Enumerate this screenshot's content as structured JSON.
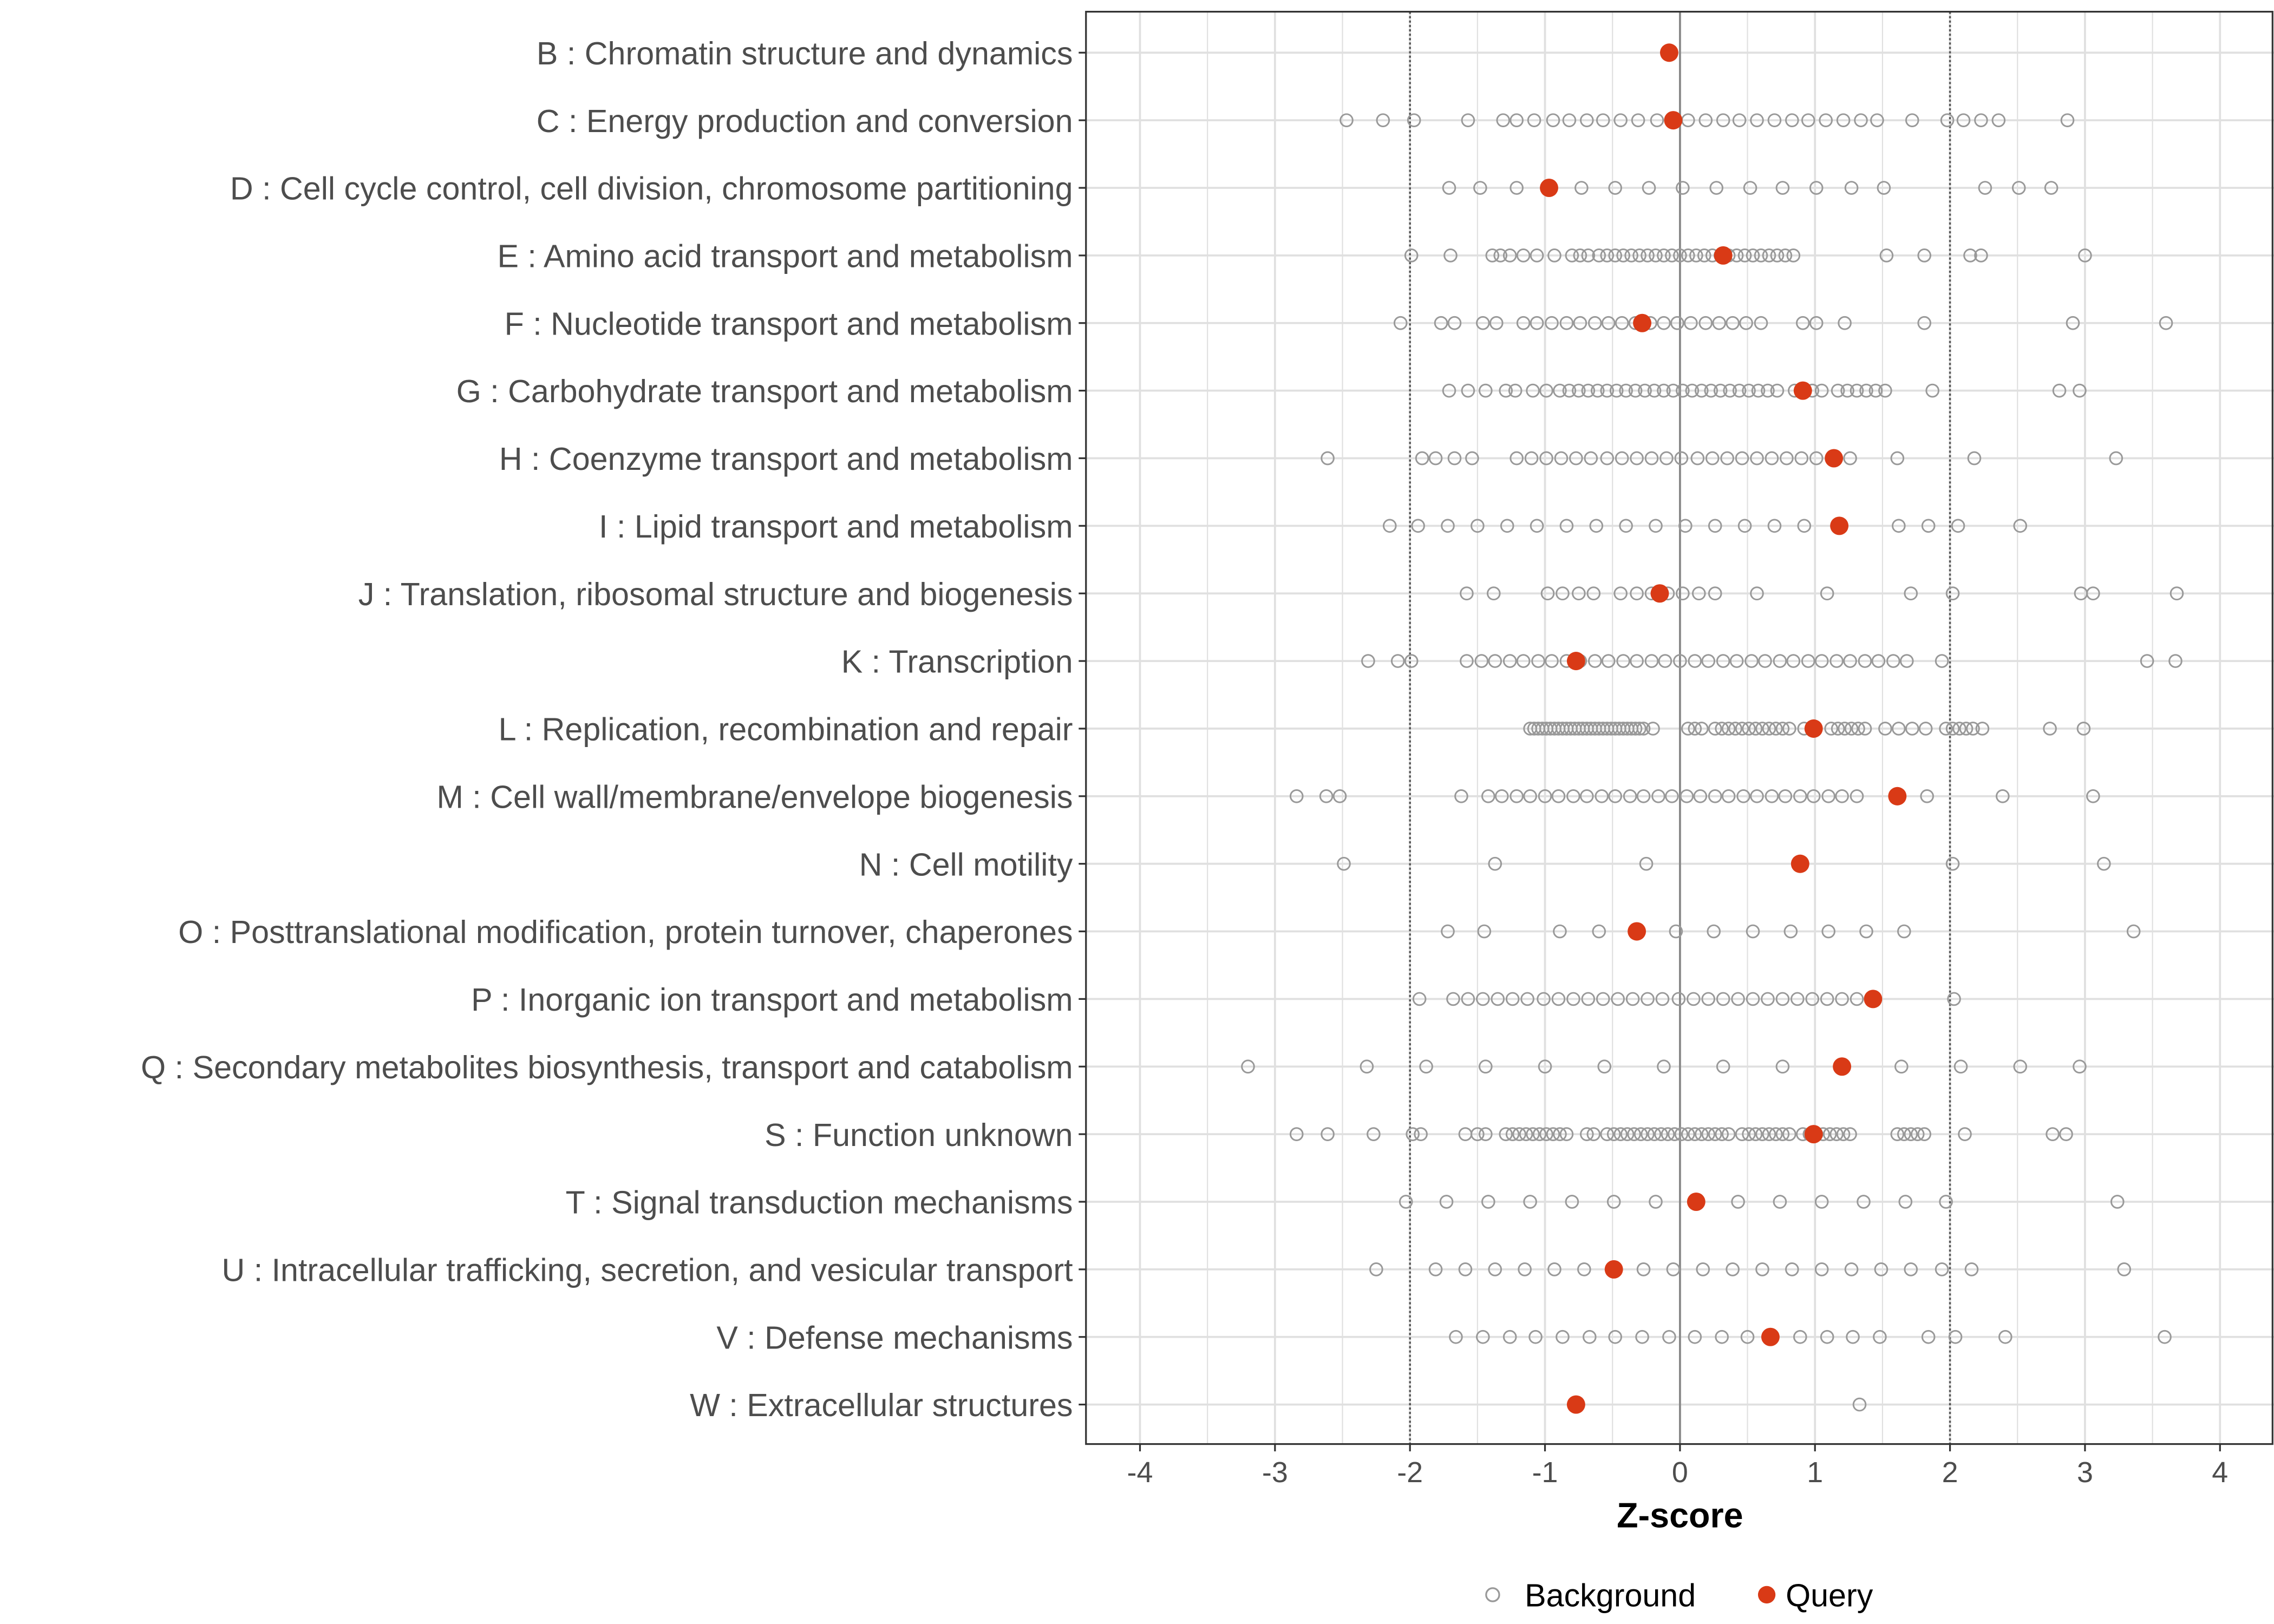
{
  "chart_data": {
    "type": "scatter",
    "xlabel": "Z-score",
    "xlim": [
      -4.4,
      4.4
    ],
    "x_ticks": [
      -4,
      -3,
      -2,
      -1,
      0,
      1,
      2,
      3,
      4
    ],
    "x_tick_labels": [
      "-4",
      "-3",
      "-2",
      "-1",
      "0",
      "1",
      "2",
      "3",
      "4"
    ],
    "reference_lines": [
      {
        "x": -2,
        "style": "dotted"
      },
      {
        "x": 0,
        "style": "solid"
      },
      {
        "x": 2,
        "style": "dotted"
      }
    ],
    "grid": true,
    "legend": {
      "placement": "bottom",
      "entries": [
        {
          "label": "Background",
          "shape": "open-circle",
          "color": "#999999"
        },
        {
          "label": "Query",
          "shape": "filled-circle",
          "color": "#d93a16"
        }
      ]
    },
    "categories": [
      "B : Chromatin structure and dynamics",
      "C : Energy production and conversion",
      "D : Cell cycle control, cell division, chromosome partitioning",
      "E : Amino acid transport and metabolism",
      "F : Nucleotide transport and metabolism",
      "G : Carbohydrate transport and metabolism",
      "H : Coenzyme transport and metabolism",
      "I : Lipid transport and metabolism",
      "J : Translation, ribosomal structure and biogenesis",
      "K : Transcription",
      "L : Replication, recombination and repair",
      "M : Cell wall/membrane/envelope biogenesis",
      "N : Cell motility",
      "O : Posttranslational modification, protein turnover, chaperones",
      "P : Inorganic ion transport and metabolism",
      "Q : Secondary metabolites biosynthesis, transport and catabolism",
      "S : Function unknown",
      "T : Signal transduction mechanisms",
      "U : Intracellular trafficking, secretion, and vesicular transport",
      "V : Defense mechanisms",
      "W : Extracellular structures"
    ],
    "series": [
      {
        "name": "Query",
        "values": [
          -0.08,
          -0.05,
          -0.97,
          0.32,
          -0.28,
          0.91,
          1.14,
          1.18,
          -0.15,
          -0.77,
          0.99,
          1.61,
          0.89,
          -0.32,
          1.43,
          1.2,
          0.99,
          0.12,
          -0.49,
          0.67,
          -0.77
        ]
      },
      {
        "name": "Background",
        "values": [
          [],
          [
            -2.47,
            -2.2,
            -1.97,
            -1.57,
            -1.31,
            -1.21,
            -1.08,
            -0.94,
            -0.82,
            -0.69,
            -0.57,
            -0.44,
            -0.31,
            -0.17,
            -0.05,
            0.06,
            0.19,
            0.32,
            0.44,
            0.57,
            0.7,
            0.83,
            0.95,
            1.08,
            1.21,
            1.34,
            1.46,
            1.72,
            1.98,
            2.1,
            2.23,
            2.36,
            2.87
          ],
          [
            -1.71,
            -1.48,
            -1.21,
            -0.97,
            -0.73,
            -0.48,
            -0.23,
            0.02,
            0.27,
            0.52,
            0.76,
            1.01,
            1.27,
            1.51,
            2.26,
            2.51,
            2.75
          ],
          [
            -1.99,
            -1.7,
            -1.39,
            -1.33,
            -1.26,
            -1.16,
            -1.06,
            -0.93,
            -0.8,
            -0.74,
            -0.68,
            -0.6,
            -0.54,
            -0.48,
            -0.42,
            -0.36,
            -0.3,
            -0.24,
            -0.18,
            -0.12,
            -0.06,
            0.0,
            0.06,
            0.12,
            0.18,
            0.24,
            0.3,
            0.36,
            0.42,
            0.48,
            0.54,
            0.6,
            0.66,
            0.72,
            0.78,
            0.84,
            1.53,
            1.81,
            2.15,
            2.23,
            3.0
          ],
          [
            -2.07,
            -1.77,
            -1.67,
            -1.46,
            -1.36,
            -1.16,
            -1.06,
            -0.95,
            -0.84,
            -0.74,
            -0.63,
            -0.53,
            -0.43,
            -0.33,
            -0.22,
            -0.12,
            -0.02,
            0.08,
            0.19,
            0.29,
            0.39,
            0.49,
            0.6,
            0.91,
            1.01,
            1.22,
            1.81,
            2.91,
            3.6
          ],
          [
            -1.71,
            -1.57,
            -1.44,
            -1.29,
            -1.22,
            -1.09,
            -0.99,
            -0.89,
            -0.82,
            -0.75,
            -0.68,
            -0.61,
            -0.54,
            -0.47,
            -0.4,
            -0.33,
            -0.26,
            -0.19,
            -0.12,
            -0.05,
            0.02,
            0.09,
            0.16,
            0.23,
            0.3,
            0.37,
            0.44,
            0.51,
            0.58,
            0.65,
            0.72,
            0.85,
            0.98,
            1.05,
            1.17,
            1.24,
            1.31,
            1.38,
            1.45,
            1.52,
            1.87,
            2.81,
            2.96
          ],
          [
            -2.61,
            -1.91,
            -1.81,
            -1.67,
            -1.54,
            -1.21,
            -1.1,
            -0.99,
            -0.88,
            -0.77,
            -0.66,
            -0.54,
            -0.43,
            -0.32,
            -0.21,
            -0.1,
            0.01,
            0.13,
            0.24,
            0.35,
            0.46,
            0.57,
            0.68,
            0.79,
            0.9,
            1.01,
            1.26,
            1.61,
            2.18,
            3.23
          ],
          [
            -2.15,
            -1.94,
            -1.72,
            -1.5,
            -1.28,
            -1.06,
            -0.84,
            -0.62,
            -0.4,
            -0.18,
            0.04,
            0.26,
            0.48,
            0.7,
            0.92,
            1.62,
            1.84,
            2.06,
            2.52
          ],
          [
            -1.58,
            -1.38,
            -0.98,
            -0.87,
            -0.75,
            -0.64,
            -0.44,
            -0.32,
            -0.21,
            -0.09,
            0.02,
            0.14,
            0.26,
            0.57,
            1.09,
            1.71,
            2.02,
            2.97,
            3.06,
            3.68
          ],
          [
            -2.31,
            -2.09,
            -1.99,
            -1.58,
            -1.47,
            -1.37,
            -1.26,
            -1.16,
            -1.05,
            -0.95,
            -0.84,
            -0.74,
            -0.63,
            -0.53,
            -0.42,
            -0.32,
            -0.21,
            -0.11,
            0.0,
            0.11,
            0.21,
            0.32,
            0.42,
            0.53,
            0.63,
            0.74,
            0.84,
            0.95,
            1.05,
            1.16,
            1.26,
            1.37,
            1.47,
            1.58,
            1.68,
            1.94,
            3.46,
            3.67
          ],
          [
            -1.11,
            -1.08,
            -1.05,
            -1.02,
            -0.99,
            -0.96,
            -0.93,
            -0.9,
            -0.87,
            -0.84,
            -0.81,
            -0.78,
            -0.75,
            -0.72,
            -0.69,
            -0.66,
            -0.63,
            -0.6,
            -0.57,
            -0.54,
            -0.51,
            -0.48,
            -0.45,
            -0.42,
            -0.39,
            -0.36,
            -0.33,
            -0.3,
            -0.27,
            -0.2,
            0.06,
            0.11,
            0.16,
            0.26,
            0.31,
            0.36,
            0.41,
            0.46,
            0.51,
            0.56,
            0.61,
            0.66,
            0.71,
            0.76,
            0.81,
            0.92,
            1.12,
            1.17,
            1.22,
            1.27,
            1.32,
            1.37,
            1.52,
            1.62,
            1.72,
            1.82,
            1.97,
            2.02,
            2.07,
            2.12,
            2.17,
            2.24,
            2.74,
            2.99
          ],
          [
            -2.84,
            -2.62,
            -2.52,
            -1.62,
            -1.42,
            -1.32,
            -1.21,
            -1.11,
            -1.0,
            -0.9,
            -0.79,
            -0.69,
            -0.58,
            -0.48,
            -0.37,
            -0.27,
            -0.16,
            -0.06,
            0.05,
            0.15,
            0.26,
            0.36,
            0.47,
            0.57,
            0.68,
            0.78,
            0.89,
            0.99,
            1.1,
            1.2,
            1.31,
            1.83,
            2.39,
            3.06
          ],
          [
            -2.49,
            -1.37,
            -0.25,
            2.02,
            3.14
          ],
          [
            -1.72,
            -1.45,
            -0.89,
            -0.6,
            -0.03,
            0.25,
            0.54,
            0.82,
            1.1,
            1.38,
            1.66,
            3.36
          ],
          [
            -1.93,
            -1.68,
            -1.57,
            -1.46,
            -1.35,
            -1.24,
            -1.13,
            -1.01,
            -0.9,
            -0.79,
            -0.68,
            -0.57,
            -0.46,
            -0.35,
            -0.24,
            -0.13,
            -0.01,
            0.1,
            0.21,
            0.32,
            0.43,
            0.54,
            0.65,
            0.76,
            0.87,
            0.98,
            1.09,
            1.2,
            1.31,
            2.03
          ],
          [
            -3.2,
            -2.32,
            -1.88,
            -1.44,
            -1.0,
            -0.56,
            -0.12,
            0.32,
            0.76,
            1.64,
            2.08,
            2.52,
            2.96
          ],
          [
            -2.84,
            -2.61,
            -2.27,
            -1.98,
            -1.92,
            -1.59,
            -1.5,
            -1.44,
            -1.29,
            -1.24,
            -1.19,
            -1.14,
            -1.09,
            -1.04,
            -0.99,
            -0.94,
            -0.89,
            -0.84,
            -0.69,
            -0.64,
            -0.54,
            -0.49,
            -0.44,
            -0.39,
            -0.34,
            -0.29,
            -0.24,
            -0.19,
            -0.14,
            -0.09,
            -0.04,
            0.01,
            0.06,
            0.11,
            0.16,
            0.21,
            0.26,
            0.31,
            0.36,
            0.46,
            0.51,
            0.56,
            0.61,
            0.66,
            0.71,
            0.76,
            0.81,
            0.91,
            0.96,
            1.01,
            1.06,
            1.11,
            1.16,
            1.21,
            1.26,
            1.61,
            1.66,
            1.71,
            1.76,
            1.81,
            2.11,
            2.76,
            2.86
          ],
          [
            -2.03,
            -1.73,
            -1.42,
            -1.11,
            -0.8,
            -0.49,
            -0.18,
            0.43,
            0.74,
            1.05,
            1.36,
            1.67,
            1.97,
            3.24
          ],
          [
            -2.25,
            -1.81,
            -1.59,
            -1.37,
            -1.15,
            -0.93,
            -0.71,
            -0.27,
            -0.05,
            0.17,
            0.39,
            0.61,
            0.83,
            1.05,
            1.27,
            1.49,
            1.71,
            1.94,
            2.16,
            3.29
          ],
          [
            -1.66,
            -1.46,
            -1.26,
            -1.07,
            -0.87,
            -0.67,
            -0.48,
            -0.28,
            -0.08,
            0.11,
            0.31,
            0.5,
            0.89,
            1.09,
            1.28,
            1.48,
            1.84,
            2.04,
            2.41,
            3.59
          ],
          [
            1.33
          ]
        ]
      }
    ]
  }
}
